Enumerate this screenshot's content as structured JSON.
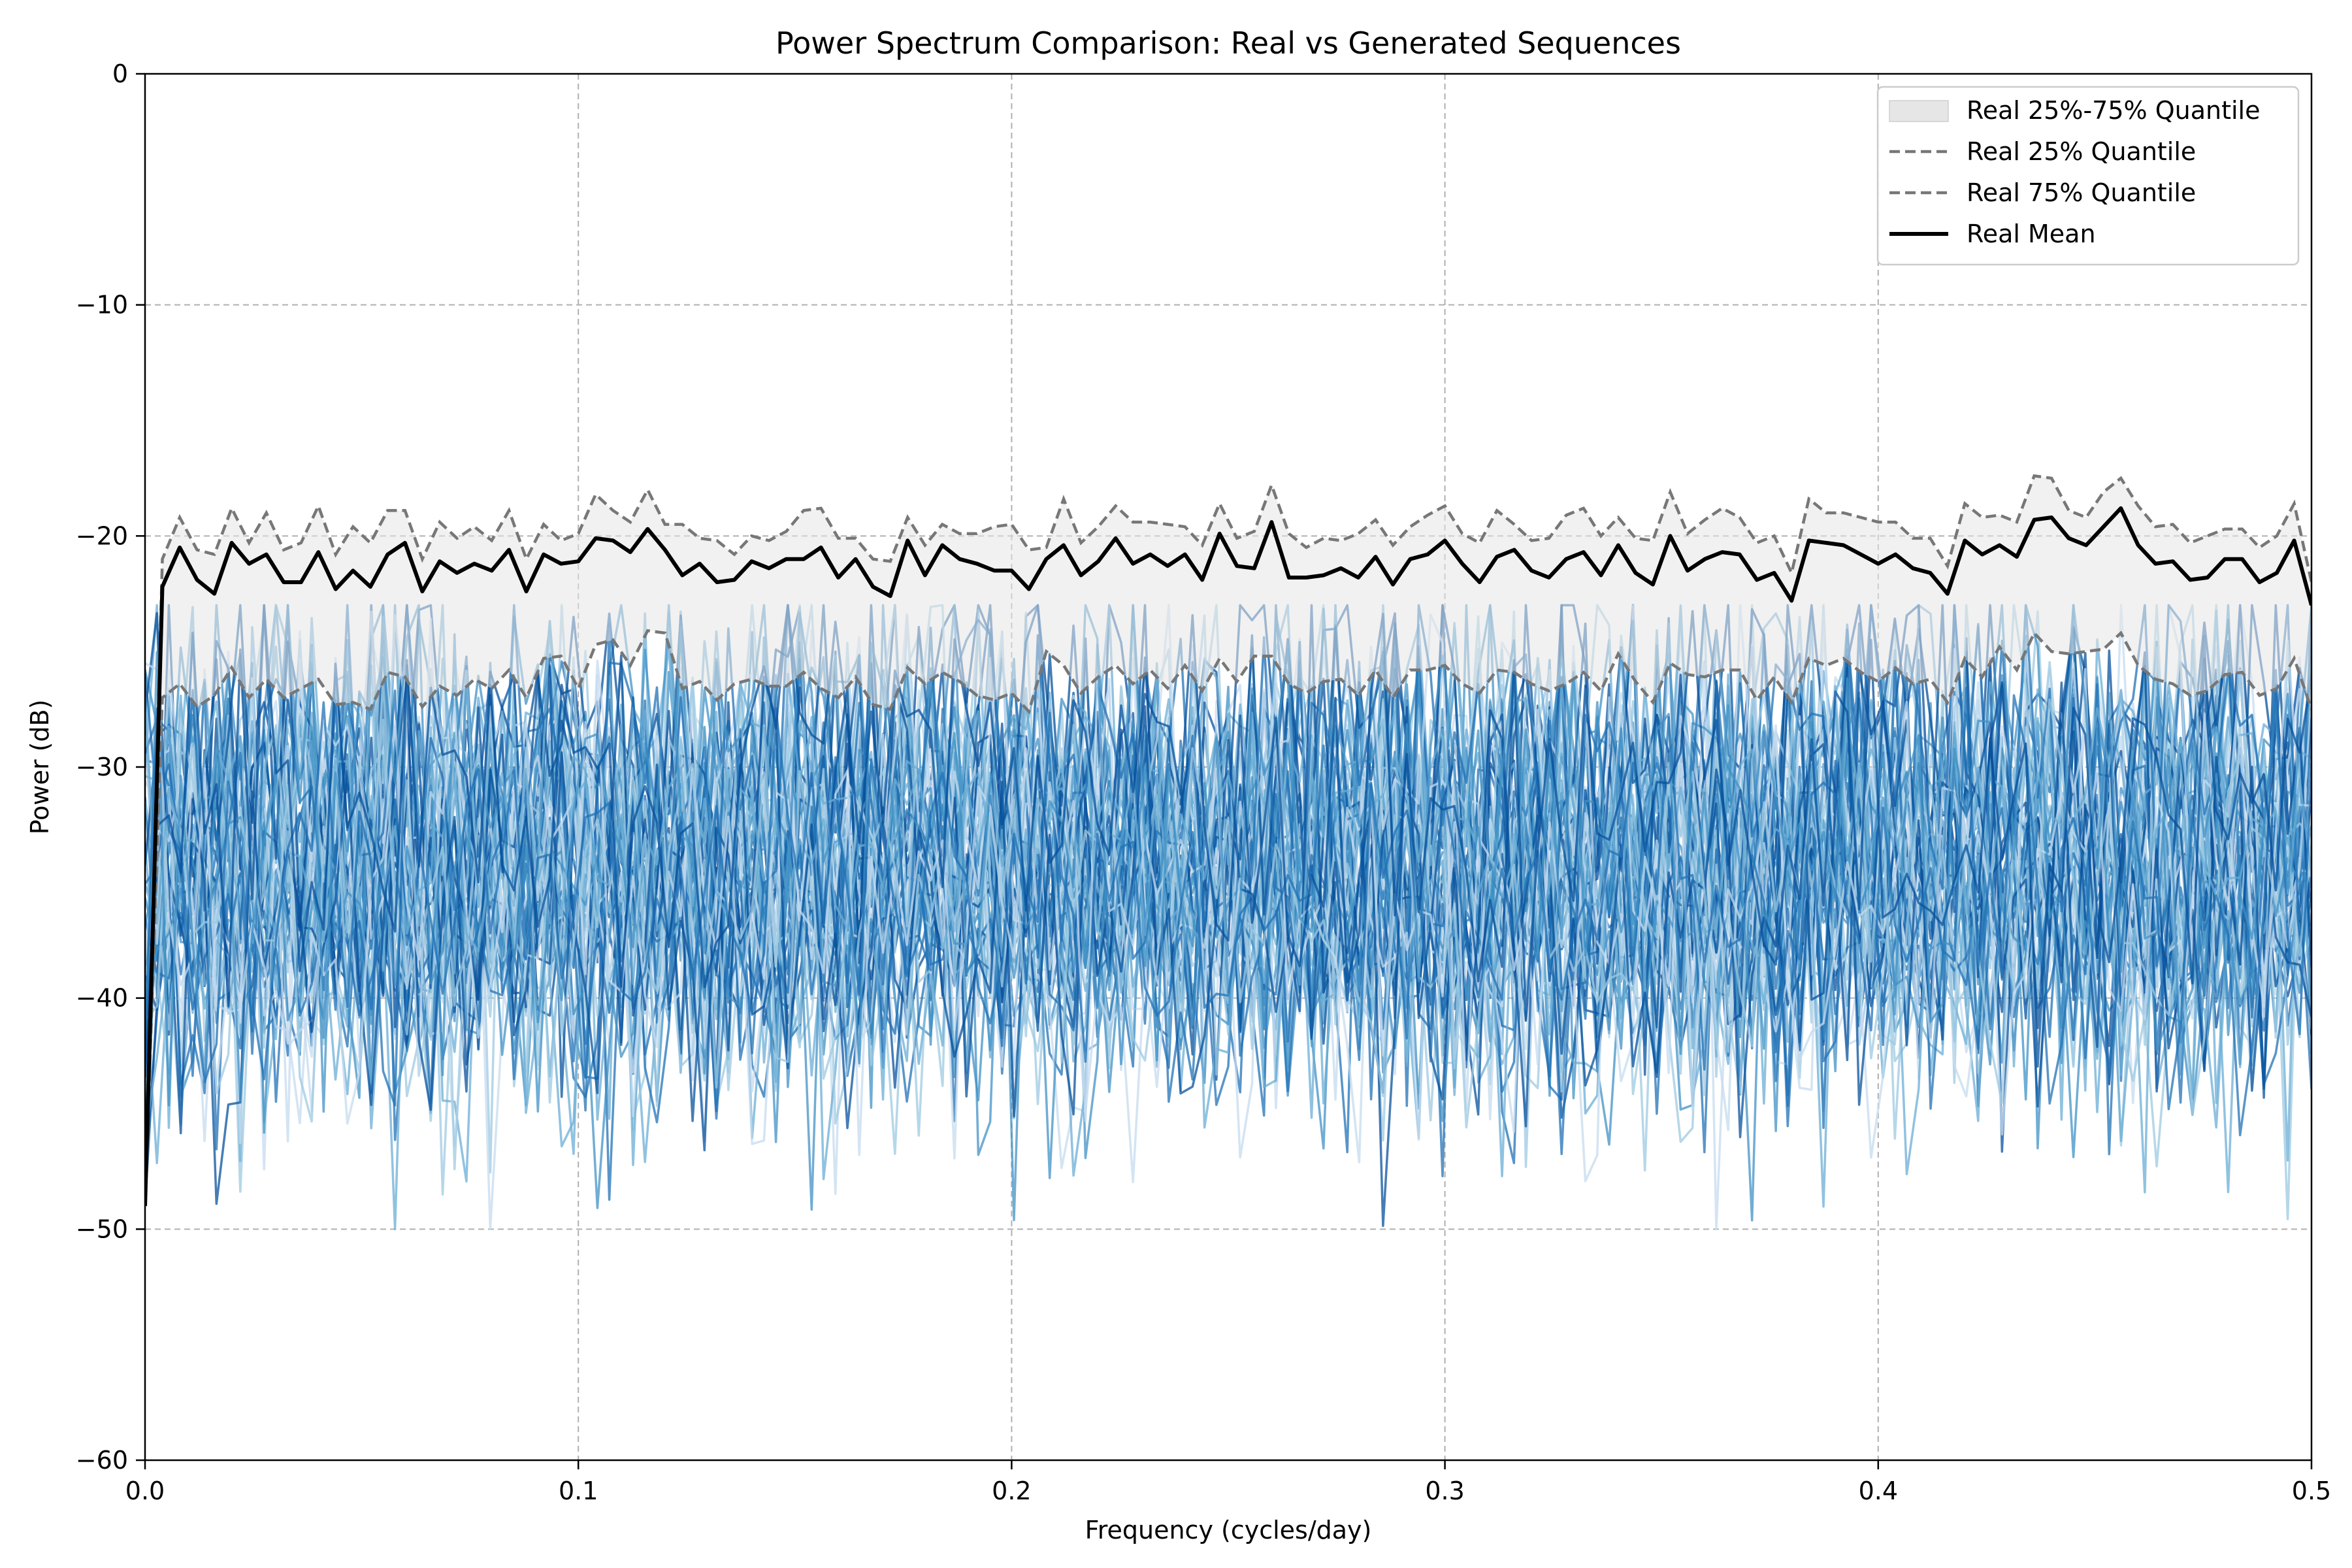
{
  "chart_data": {
    "type": "line",
    "title": "Power Spectrum Comparison: Real vs Generated Sequences",
    "xlabel": "Frequency (cycles/day)",
    "ylabel": "Power (dB)",
    "xlim": [
      0.0,
      0.5
    ],
    "ylim": [
      -60,
      0
    ],
    "xticks": [
      0.0,
      0.1,
      0.2,
      0.3,
      0.4,
      0.5
    ],
    "xtick_labels": [
      "0.0",
      "0.1",
      "0.2",
      "0.3",
      "0.4",
      "0.5"
    ],
    "yticks": [
      0,
      -10,
      -20,
      -30,
      -40,
      -50,
      -60
    ],
    "ytick_labels": [
      "0",
      "−10",
      "−20",
      "−30",
      "−40",
      "−50",
      "−60"
    ],
    "grid": true,
    "legend_position": "top-right",
    "legend": [
      {
        "label": "Real 25%-75% Quantile",
        "kind": "band"
      },
      {
        "label": "Real 25% Quantile",
        "kind": "dashed"
      },
      {
        "label": "Real 75% Quantile",
        "kind": "dashed"
      },
      {
        "label": "Real Mean",
        "kind": "solid"
      }
    ],
    "colors": {
      "real_mean": "#000000",
      "quantile_lines": "#777777",
      "quantile_band": "#e6e6e6",
      "generated": [
        "#c6dbef",
        "#9ecae1",
        "#6baed6",
        "#4292c6",
        "#2171b5",
        "#08519c"
      ]
    },
    "frequency": {
      "start": 0.0,
      "stop": 0.5,
      "points": 183
    },
    "real_mean": [
      [
        0.0,
        -49.0
      ],
      [
        0.004,
        -22.2
      ],
      [
        0.008,
        -20.5
      ],
      [
        0.012,
        -21.9
      ],
      [
        0.016,
        -22.5
      ],
      [
        0.02,
        -20.3
      ],
      [
        0.024,
        -21.2
      ],
      [
        0.028,
        -20.8
      ],
      [
        0.032,
        -22.0
      ],
      [
        0.036,
        -22.0
      ],
      [
        0.04,
        -20.7
      ],
      [
        0.044,
        -22.3
      ],
      [
        0.048,
        -21.5
      ],
      [
        0.052,
        -22.2
      ],
      [
        0.056,
        -20.8
      ],
      [
        0.06,
        -20.3
      ],
      [
        0.064,
        -22.4
      ],
      [
        0.068,
        -21.1
      ],
      [
        0.072,
        -21.6
      ],
      [
        0.076,
        -21.2
      ],
      [
        0.08,
        -21.5
      ],
      [
        0.084,
        -20.6
      ],
      [
        0.088,
        -22.4
      ],
      [
        0.092,
        -20.8
      ],
      [
        0.096,
        -21.2
      ],
      [
        0.1,
        -21.1
      ],
      [
        0.104,
        -20.1
      ],
      [
        0.108,
        -20.2
      ],
      [
        0.112,
        -20.7
      ],
      [
        0.116,
        -19.7
      ],
      [
        0.12,
        -20.6
      ],
      [
        0.124,
        -21.7
      ],
      [
        0.128,
        -21.2
      ],
      [
        0.132,
        -22.0
      ],
      [
        0.136,
        -21.9
      ],
      [
        0.14,
        -21.1
      ],
      [
        0.144,
        -21.4
      ],
      [
        0.148,
        -21.0
      ],
      [
        0.152,
        -21.0
      ],
      [
        0.156,
        -20.5
      ],
      [
        0.16,
        -21.8
      ],
      [
        0.164,
        -21.0
      ],
      [
        0.168,
        -22.2
      ],
      [
        0.172,
        -22.6
      ],
      [
        0.176,
        -20.2
      ],
      [
        0.18,
        -21.7
      ],
      [
        0.184,
        -20.4
      ],
      [
        0.188,
        -21.0
      ],
      [
        0.192,
        -21.2
      ],
      [
        0.196,
        -21.5
      ],
      [
        0.2,
        -21.5
      ],
      [
        0.204,
        -22.3
      ],
      [
        0.208,
        -21.0
      ],
      [
        0.212,
        -20.4
      ],
      [
        0.216,
        -21.7
      ],
      [
        0.22,
        -21.1
      ],
      [
        0.224,
        -20.1
      ],
      [
        0.228,
        -21.2
      ],
      [
        0.232,
        -20.8
      ],
      [
        0.236,
        -21.3
      ],
      [
        0.24,
        -20.8
      ],
      [
        0.244,
        -21.9
      ],
      [
        0.248,
        -19.9
      ],
      [
        0.252,
        -21.3
      ],
      [
        0.256,
        -21.4
      ],
      [
        0.26,
        -19.4
      ],
      [
        0.264,
        -21.8
      ],
      [
        0.268,
        -21.8
      ],
      [
        0.272,
        -21.7
      ],
      [
        0.276,
        -21.4
      ],
      [
        0.28,
        -21.8
      ],
      [
        0.284,
        -20.9
      ],
      [
        0.288,
        -22.1
      ],
      [
        0.292,
        -21.0
      ],
      [
        0.296,
        -20.8
      ],
      [
        0.3,
        -20.2
      ],
      [
        0.304,
        -21.2
      ],
      [
        0.308,
        -22.0
      ],
      [
        0.312,
        -20.9
      ],
      [
        0.316,
        -20.6
      ],
      [
        0.32,
        -21.5
      ],
      [
        0.324,
        -21.8
      ],
      [
        0.328,
        -21.0
      ],
      [
        0.332,
        -20.7
      ],
      [
        0.336,
        -21.7
      ],
      [
        0.34,
        -20.4
      ],
      [
        0.344,
        -21.6
      ],
      [
        0.348,
        -22.1
      ],
      [
        0.352,
        -20.0
      ],
      [
        0.356,
        -21.5
      ],
      [
        0.36,
        -21.0
      ],
      [
        0.364,
        -20.7
      ],
      [
        0.368,
        -20.8
      ],
      [
        0.372,
        -21.9
      ],
      [
        0.376,
        -21.6
      ],
      [
        0.38,
        -22.8
      ],
      [
        0.384,
        -20.2
      ],
      [
        0.388,
        -20.3
      ],
      [
        0.392,
        -20.4
      ],
      [
        0.396,
        -20.8
      ],
      [
        0.4,
        -21.2
      ],
      [
        0.404,
        -20.8
      ],
      [
        0.408,
        -21.4
      ],
      [
        0.412,
        -21.6
      ],
      [
        0.416,
        -22.5
      ],
      [
        0.42,
        -20.2
      ],
      [
        0.424,
        -20.8
      ],
      [
        0.428,
        -20.4
      ],
      [
        0.432,
        -20.9
      ],
      [
        0.436,
        -19.3
      ],
      [
        0.44,
        -19.2
      ],
      [
        0.444,
        -20.1
      ],
      [
        0.448,
        -20.4
      ],
      [
        0.452,
        -19.6
      ],
      [
        0.456,
        -18.8
      ],
      [
        0.46,
        -20.4
      ],
      [
        0.464,
        -21.2
      ],
      [
        0.468,
        -21.1
      ],
      [
        0.472,
        -21.9
      ],
      [
        0.476,
        -21.8
      ],
      [
        0.48,
        -21.0
      ],
      [
        0.484,
        -21.0
      ],
      [
        0.488,
        -22.0
      ],
      [
        0.492,
        -21.6
      ],
      [
        0.496,
        -20.2
      ],
      [
        0.5,
        -23.0
      ]
    ],
    "real_q75": [
      [
        0.0,
        -49.0
      ],
      [
        0.004,
        -21.0
      ],
      [
        0.008,
        -19.2
      ],
      [
        0.012,
        -20.6
      ],
      [
        0.016,
        -20.8
      ],
      [
        0.02,
        -18.8
      ],
      [
        0.024,
        -20.3
      ],
      [
        0.028,
        -19.0
      ],
      [
        0.032,
        -20.6
      ],
      [
        0.036,
        -20.3
      ],
      [
        0.04,
        -18.7
      ],
      [
        0.044,
        -20.8
      ],
      [
        0.048,
        -19.6
      ],
      [
        0.052,
        -20.3
      ],
      [
        0.056,
        -18.9
      ],
      [
        0.06,
        -18.9
      ],
      [
        0.064,
        -21.0
      ],
      [
        0.068,
        -19.4
      ],
      [
        0.072,
        -20.1
      ],
      [
        0.076,
        -19.6
      ],
      [
        0.08,
        -20.2
      ],
      [
        0.084,
        -18.9
      ],
      [
        0.088,
        -21.0
      ],
      [
        0.092,
        -19.5
      ],
      [
        0.096,
        -20.2
      ],
      [
        0.1,
        -19.9
      ],
      [
        0.104,
        -18.2
      ],
      [
        0.108,
        -18.9
      ],
      [
        0.112,
        -19.4
      ],
      [
        0.116,
        -18.0
      ],
      [
        0.12,
        -19.5
      ],
      [
        0.124,
        -19.5
      ],
      [
        0.128,
        -20.1
      ],
      [
        0.132,
        -20.2
      ],
      [
        0.136,
        -20.8
      ],
      [
        0.14,
        -20.0
      ],
      [
        0.144,
        -20.2
      ],
      [
        0.148,
        -19.8
      ],
      [
        0.152,
        -18.9
      ],
      [
        0.156,
        -18.8
      ],
      [
        0.16,
        -20.1
      ],
      [
        0.164,
        -20.1
      ],
      [
        0.168,
        -21.0
      ],
      [
        0.172,
        -21.1
      ],
      [
        0.176,
        -19.2
      ],
      [
        0.18,
        -20.4
      ],
      [
        0.184,
        -19.5
      ],
      [
        0.188,
        -19.9
      ],
      [
        0.192,
        -19.9
      ],
      [
        0.196,
        -19.6
      ],
      [
        0.2,
        -19.5
      ],
      [
        0.204,
        -20.6
      ],
      [
        0.208,
        -20.5
      ],
      [
        0.212,
        -18.4
      ],
      [
        0.216,
        -20.3
      ],
      [
        0.22,
        -19.6
      ],
      [
        0.224,
        -18.7
      ],
      [
        0.228,
        -19.4
      ],
      [
        0.232,
        -19.4
      ],
      [
        0.236,
        -19.5
      ],
      [
        0.24,
        -19.6
      ],
      [
        0.244,
        -20.4
      ],
      [
        0.248,
        -18.6
      ],
      [
        0.252,
        -20.1
      ],
      [
        0.256,
        -19.8
      ],
      [
        0.26,
        -17.8
      ],
      [
        0.264,
        -19.9
      ],
      [
        0.268,
        -20.5
      ],
      [
        0.272,
        -20.1
      ],
      [
        0.276,
        -20.2
      ],
      [
        0.28,
        -19.9
      ],
      [
        0.284,
        -19.3
      ],
      [
        0.288,
        -20.4
      ],
      [
        0.292,
        -19.6
      ],
      [
        0.296,
        -19.1
      ],
      [
        0.3,
        -18.7
      ],
      [
        0.304,
        -19.9
      ],
      [
        0.308,
        -20.3
      ],
      [
        0.312,
        -18.9
      ],
      [
        0.316,
        -19.5
      ],
      [
        0.32,
        -20.2
      ],
      [
        0.324,
        -20.1
      ],
      [
        0.328,
        -19.1
      ],
      [
        0.332,
        -18.8
      ],
      [
        0.336,
        -20.0
      ],
      [
        0.34,
        -19.2
      ],
      [
        0.344,
        -20.1
      ],
      [
        0.348,
        -20.2
      ],
      [
        0.352,
        -18.1
      ],
      [
        0.356,
        -19.9
      ],
      [
        0.36,
        -19.3
      ],
      [
        0.364,
        -18.8
      ],
      [
        0.368,
        -19.2
      ],
      [
        0.372,
        -20.3
      ],
      [
        0.376,
        -20.0
      ],
      [
        0.38,
        -21.6
      ],
      [
        0.384,
        -18.4
      ],
      [
        0.388,
        -19.0
      ],
      [
        0.392,
        -19.0
      ],
      [
        0.396,
        -19.2
      ],
      [
        0.4,
        -19.4
      ],
      [
        0.404,
        -19.4
      ],
      [
        0.408,
        -20.1
      ],
      [
        0.412,
        -20.1
      ],
      [
        0.416,
        -21.3
      ],
      [
        0.42,
        -18.6
      ],
      [
        0.424,
        -19.2
      ],
      [
        0.428,
        -19.1
      ],
      [
        0.432,
        -19.4
      ],
      [
        0.436,
        -17.4
      ],
      [
        0.44,
        -17.5
      ],
      [
        0.444,
        -18.9
      ],
      [
        0.448,
        -19.2
      ],
      [
        0.452,
        -18.1
      ],
      [
        0.456,
        -17.5
      ],
      [
        0.46,
        -18.7
      ],
      [
        0.464,
        -19.6
      ],
      [
        0.468,
        -19.5
      ],
      [
        0.472,
        -20.3
      ],
      [
        0.476,
        -20.0
      ],
      [
        0.48,
        -19.7
      ],
      [
        0.484,
        -19.7
      ],
      [
        0.488,
        -20.5
      ],
      [
        0.492,
        -20.0
      ],
      [
        0.496,
        -18.6
      ],
      [
        0.5,
        -22.0
      ]
    ],
    "real_q25": [
      [
        0.0,
        -49.0
      ],
      [
        0.004,
        -27.0
      ],
      [
        0.008,
        -26.4
      ],
      [
        0.012,
        -27.4
      ],
      [
        0.016,
        -26.9
      ],
      [
        0.02,
        -25.7
      ],
      [
        0.024,
        -27.0
      ],
      [
        0.028,
        -26.2
      ],
      [
        0.032,
        -27.0
      ],
      [
        0.036,
        -26.6
      ],
      [
        0.04,
        -26.2
      ],
      [
        0.044,
        -27.3
      ],
      [
        0.048,
        -27.2
      ],
      [
        0.052,
        -27.5
      ],
      [
        0.056,
        -25.9
      ],
      [
        0.06,
        -26.1
      ],
      [
        0.064,
        -27.4
      ],
      [
        0.068,
        -26.5
      ],
      [
        0.072,
        -26.9
      ],
      [
        0.076,
        -26.2
      ],
      [
        0.08,
        -26.6
      ],
      [
        0.084,
        -25.8
      ],
      [
        0.088,
        -27.0
      ],
      [
        0.092,
        -25.3
      ],
      [
        0.096,
        -25.2
      ],
      [
        0.1,
        -26.6
      ],
      [
        0.104,
        -24.7
      ],
      [
        0.108,
        -24.5
      ],
      [
        0.112,
        -25.6
      ],
      [
        0.116,
        -24.1
      ],
      [
        0.12,
        -24.2
      ],
      [
        0.124,
        -26.6
      ],
      [
        0.128,
        -26.3
      ],
      [
        0.132,
        -27.1
      ],
      [
        0.136,
        -26.4
      ],
      [
        0.14,
        -26.2
      ],
      [
        0.144,
        -26.5
      ],
      [
        0.148,
        -26.5
      ],
      [
        0.152,
        -25.9
      ],
      [
        0.156,
        -26.6
      ],
      [
        0.16,
        -27.0
      ],
      [
        0.164,
        -26.1
      ],
      [
        0.168,
        -27.3
      ],
      [
        0.172,
        -27.5
      ],
      [
        0.176,
        -25.7
      ],
      [
        0.18,
        -26.4
      ],
      [
        0.184,
        -25.9
      ],
      [
        0.188,
        -26.3
      ],
      [
        0.192,
        -26.9
      ],
      [
        0.196,
        -27.1
      ],
      [
        0.2,
        -26.8
      ],
      [
        0.204,
        -27.6
      ],
      [
        0.208,
        -25.0
      ],
      [
        0.212,
        -25.6
      ],
      [
        0.216,
        -26.8
      ],
      [
        0.22,
        -26.1
      ],
      [
        0.224,
        -25.6
      ],
      [
        0.228,
        -26.4
      ],
      [
        0.232,
        -25.8
      ],
      [
        0.236,
        -26.6
      ],
      [
        0.24,
        -25.6
      ],
      [
        0.244,
        -26.7
      ],
      [
        0.248,
        -25.3
      ],
      [
        0.252,
        -26.3
      ],
      [
        0.256,
        -25.2
      ],
      [
        0.26,
        -25.2
      ],
      [
        0.264,
        -26.4
      ],
      [
        0.268,
        -26.8
      ],
      [
        0.272,
        -26.3
      ],
      [
        0.276,
        -26.2
      ],
      [
        0.28,
        -26.9
      ],
      [
        0.284,
        -25.8
      ],
      [
        0.288,
        -27.0
      ],
      [
        0.292,
        -25.8
      ],
      [
        0.296,
        -25.8
      ],
      [
        0.3,
        -25.6
      ],
      [
        0.304,
        -26.4
      ],
      [
        0.308,
        -26.8
      ],
      [
        0.312,
        -25.8
      ],
      [
        0.316,
        -25.9
      ],
      [
        0.32,
        -26.4
      ],
      [
        0.324,
        -26.7
      ],
      [
        0.328,
        -26.4
      ],
      [
        0.332,
        -25.9
      ],
      [
        0.336,
        -26.7
      ],
      [
        0.34,
        -25.1
      ],
      [
        0.344,
        -26.3
      ],
      [
        0.348,
        -27.2
      ],
      [
        0.352,
        -25.5
      ],
      [
        0.356,
        -26.0
      ],
      [
        0.36,
        -26.1
      ],
      [
        0.364,
        -25.8
      ],
      [
        0.368,
        -25.8
      ],
      [
        0.372,
        -27.1
      ],
      [
        0.376,
        -26.1
      ],
      [
        0.38,
        -27.2
      ],
      [
        0.384,
        -25.3
      ],
      [
        0.388,
        -25.6
      ],
      [
        0.392,
        -25.3
      ],
      [
        0.396,
        -25.9
      ],
      [
        0.4,
        -26.3
      ],
      [
        0.404,
        -25.7
      ],
      [
        0.408,
        -26.4
      ],
      [
        0.412,
        -26.2
      ],
      [
        0.416,
        -27.2
      ],
      [
        0.42,
        -25.3
      ],
      [
        0.424,
        -26.1
      ],
      [
        0.428,
        -24.8
      ],
      [
        0.432,
        -25.8
      ],
      [
        0.436,
        -24.2
      ],
      [
        0.44,
        -25.0
      ],
      [
        0.444,
        -25.1
      ],
      [
        0.448,
        -25.0
      ],
      [
        0.452,
        -24.9
      ],
      [
        0.456,
        -24.2
      ],
      [
        0.46,
        -25.6
      ],
      [
        0.464,
        -26.2
      ],
      [
        0.468,
        -26.4
      ],
      [
        0.472,
        -26.9
      ],
      [
        0.476,
        -26.7
      ],
      [
        0.48,
        -26.0
      ],
      [
        0.484,
        -25.9
      ],
      [
        0.488,
        -26.9
      ],
      [
        0.492,
        -26.6
      ],
      [
        0.496,
        -25.3
      ],
      [
        0.5,
        -27.5
      ]
    ],
    "generated": {
      "series_count": 60,
      "approx_points_per_series": 183,
      "typical_range_db": [
        -48,
        -25
      ],
      "typical_mean_db": -34,
      "extremes_db": [
        -50,
        -23
      ]
    }
  }
}
